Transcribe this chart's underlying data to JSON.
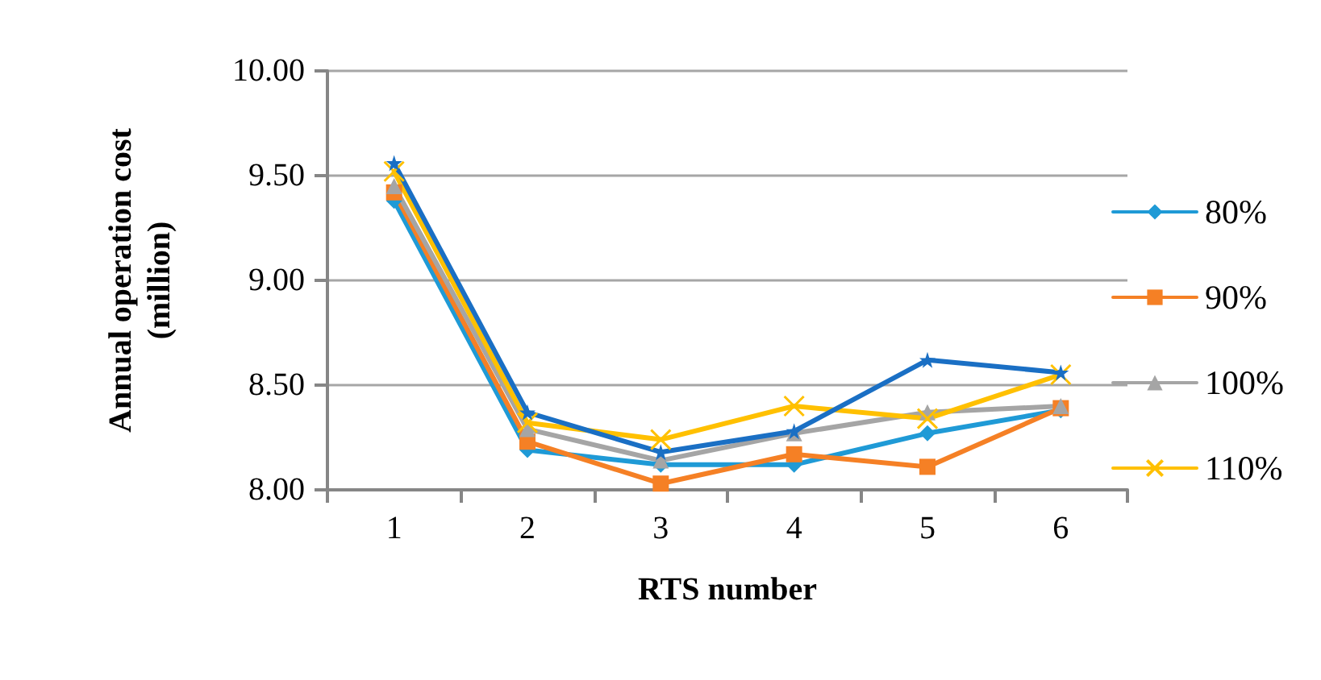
{
  "chart_data": {
    "type": "line",
    "xlabel": "RTS number",
    "ylabel": "Annual operation cost\n(million)",
    "categories": [
      "1",
      "2",
      "3",
      "4",
      "5",
      "6"
    ],
    "series": [
      {
        "name": "80%",
        "color": "#1f9ad6",
        "marker": "diamond",
        "values": [
          9.38,
          8.19,
          8.12,
          8.12,
          8.27,
          8.38
        ]
      },
      {
        "name": "90%",
        "color": "#f58025",
        "marker": "square",
        "values": [
          9.42,
          8.23,
          8.03,
          8.17,
          8.11,
          8.39
        ]
      },
      {
        "name": "100%",
        "color": "#a5a5a5",
        "marker": "triangle",
        "values": [
          9.45,
          8.29,
          8.14,
          8.27,
          8.37,
          8.4
        ]
      },
      {
        "name": "110%",
        "color": "#ffc000",
        "marker": "cross",
        "values": [
          9.52,
          8.32,
          8.24,
          8.4,
          8.34,
          8.55
        ]
      },
      {
        "color": "#1a6fc4",
        "marker": "star",
        "values": [
          9.56,
          8.37,
          8.18,
          8.28,
          8.62,
          8.56
        ]
      }
    ],
    "ylim": [
      8,
      10
    ],
    "yticks": [
      {
        "value": 8,
        "label": "8.00"
      },
      {
        "value": 8.5,
        "label": "8.50"
      },
      {
        "value": 9,
        "label": "9.00"
      },
      {
        "value": 9.5,
        "label": "9.50"
      },
      {
        "value": 10,
        "label": "10.00"
      }
    ],
    "grid": "y",
    "legend": "right",
    "line_style": "solid"
  }
}
